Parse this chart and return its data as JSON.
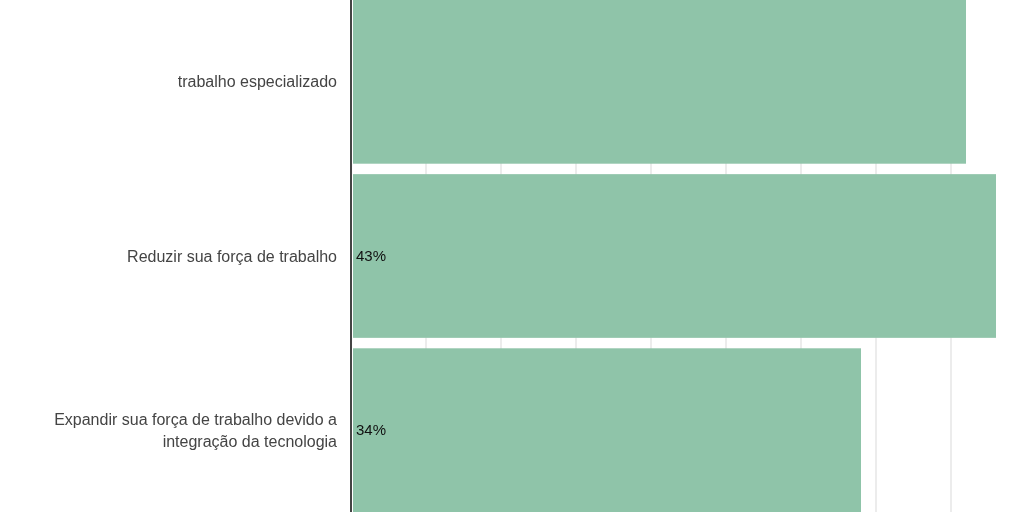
{
  "chart_data": {
    "type": "bar",
    "orientation": "horizontal",
    "categories": [
      "trabalho especializado",
      "Reduzir sua força de trabalho",
      "Expandir sua força de trabalho devido a integração da tecnologia"
    ],
    "values": [
      41,
      43,
      34
    ],
    "value_labels": [
      null,
      "43%",
      "34%"
    ],
    "color": "#8fc4a9",
    "xlim": [
      0,
      43
    ],
    "xticks": [
      {
        "value": 5,
        "label": null
      },
      {
        "value": 10,
        "label": null
      },
      {
        "value": 15,
        "label": null
      },
      {
        "value": 20,
        "label": null
      },
      {
        "value": 25,
        "label": null
      },
      {
        "value": 30,
        "label": null
      },
      {
        "value": 35,
        "label": null
      },
      {
        "value": 40,
        "label": null
      }
    ],
    "grid": "x",
    "tick_labels": "y"
  }
}
